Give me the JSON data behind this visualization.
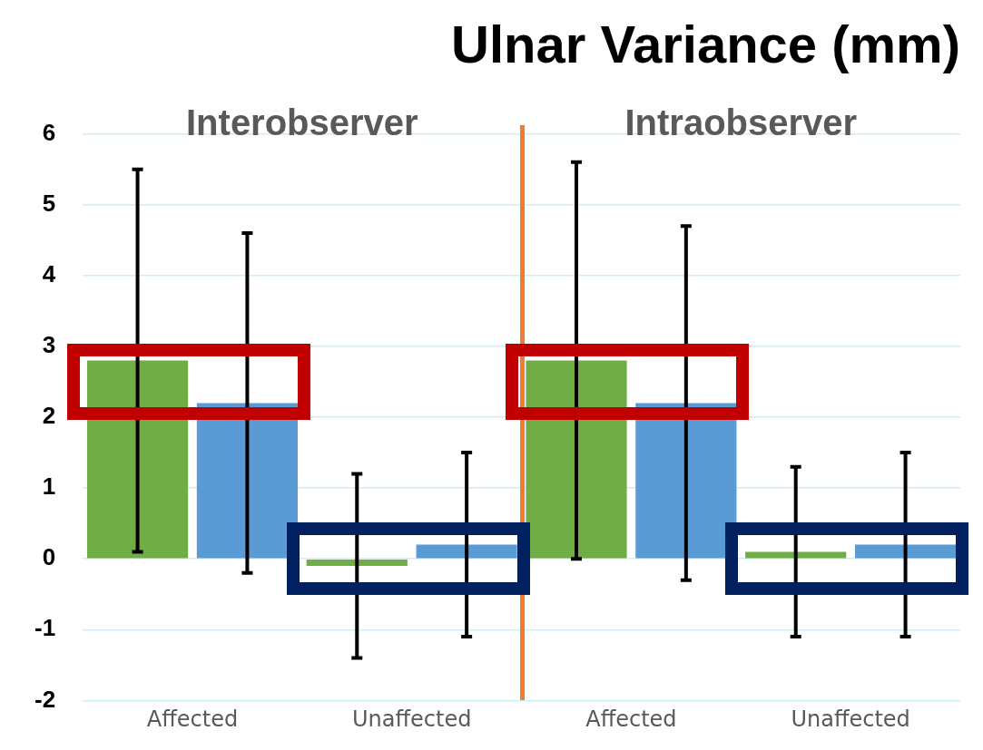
{
  "chart_data": {
    "type": "bar",
    "title": "Ulnar Variance (mm)",
    "categories": [
      "Affected",
      "Unaffected",
      "Affected",
      "Unaffected"
    ],
    "series": [
      {
        "color": "#70ad47",
        "values": [
          2.8,
          -0.1,
          2.8,
          0.1
        ],
        "errors": [
          [
            0.1,
            5.5
          ],
          [
            -1.4,
            1.2
          ],
          [
            0,
            5.6
          ],
          [
            -1.1,
            1.3
          ]
        ]
      },
      {
        "color": "#5b9bd5",
        "values": [
          2.2,
          0.2,
          2.2,
          0.2
        ],
        "errors": [
          [
            -0.2,
            4.6
          ],
          [
            -1.1,
            1.5
          ],
          [
            -0.3,
            4.7
          ],
          [
            -1.1,
            1.5
          ]
        ]
      }
    ],
    "annotations": [
      "Interobserver",
      "Intraobserver"
    ],
    "ylim": [
      -2,
      6
    ],
    "yticks": [
      -2,
      -1,
      0,
      1,
      2,
      3,
      4,
      5,
      6
    ],
    "grid": "y",
    "legend": false
  }
}
